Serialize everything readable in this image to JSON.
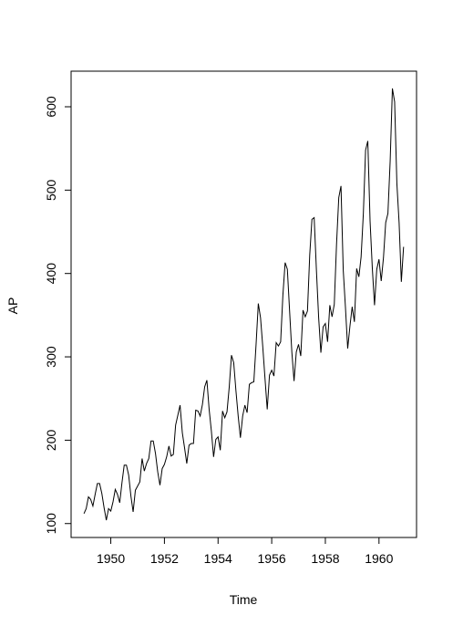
{
  "chart_data": {
    "type": "line",
    "x_label": "Time",
    "y_label": "AP",
    "x": [
      1949,
      1949.083,
      1949.167,
      1949.25,
      1949.333,
      1949.417,
      1949.5,
      1949.583,
      1949.667,
      1949.75,
      1949.833,
      1949.917,
      1950,
      1950.083,
      1950.167,
      1950.25,
      1950.333,
      1950.417,
      1950.5,
      1950.583,
      1950.667,
      1950.75,
      1950.833,
      1950.917,
      1951,
      1951.083,
      1951.167,
      1951.25,
      1951.333,
      1951.417,
      1951.5,
      1951.583,
      1951.667,
      1951.75,
      1951.833,
      1951.917,
      1952,
      1952.083,
      1952.167,
      1952.25,
      1952.333,
      1952.417,
      1952.5,
      1952.583,
      1952.667,
      1952.75,
      1952.833,
      1952.917,
      1953,
      1953.083,
      1953.167,
      1953.25,
      1953.333,
      1953.417,
      1953.5,
      1953.583,
      1953.667,
      1953.75,
      1953.833,
      1953.917,
      1954,
      1954.083,
      1954.167,
      1954.25,
      1954.333,
      1954.417,
      1954.5,
      1954.583,
      1954.667,
      1954.75,
      1954.833,
      1954.917,
      1955,
      1955.083,
      1955.167,
      1955.25,
      1955.333,
      1955.417,
      1955.5,
      1955.583,
      1955.667,
      1955.75,
      1955.833,
      1955.917,
      1956,
      1956.083,
      1956.167,
      1956.25,
      1956.333,
      1956.417,
      1956.5,
      1956.583,
      1956.667,
      1956.75,
      1956.833,
      1956.917,
      1957,
      1957.083,
      1957.167,
      1957.25,
      1957.333,
      1957.417,
      1957.5,
      1957.583,
      1957.667,
      1957.75,
      1957.833,
      1957.917,
      1958,
      1958.083,
      1958.167,
      1958.25,
      1958.333,
      1958.417,
      1958.5,
      1958.583,
      1958.667,
      1958.75,
      1958.833,
      1958.917,
      1959,
      1959.083,
      1959.167,
      1959.25,
      1959.333,
      1959.417,
      1959.5,
      1959.583,
      1959.667,
      1959.75,
      1959.833,
      1959.917,
      1960,
      1960.083,
      1960.167,
      1960.25,
      1960.333,
      1960.417,
      1960.5,
      1960.583,
      1960.667,
      1960.75,
      1960.833,
      1960.917
    ],
    "series": [
      {
        "color": "#000000",
        "values": [
          112,
          118,
          132,
          129,
          121,
          135,
          148,
          148,
          136,
          119,
          104,
          118,
          115,
          126,
          141,
          135,
          125,
          149,
          170,
          170,
          158,
          133,
          114,
          140,
          145,
          150,
          178,
          163,
          172,
          178,
          199,
          199,
          184,
          162,
          146,
          166,
          171,
          180,
          193,
          181,
          183,
          218,
          230,
          242,
          209,
          191,
          172,
          194,
          196,
          196,
          236,
          235,
          229,
          243,
          264,
          272,
          237,
          211,
          180,
          201,
          204,
          188,
          235,
          227,
          234,
          264,
          302,
          293,
          259,
          229,
          203,
          229,
          242,
          233,
          267,
          269,
          270,
          315,
          364,
          347,
          312,
          274,
          237,
          278,
          284,
          277,
          317,
          313,
          318,
          374,
          413,
          405,
          355,
          306,
          271,
          306,
          315,
          301,
          356,
          348,
          355,
          422,
          465,
          467,
          404,
          347,
          305,
          336,
          340,
          318,
          362,
          348,
          363,
          435,
          491,
          505,
          404,
          359,
          310,
          337,
          360,
          342,
          406,
          396,
          420,
          472,
          548,
          559,
          463,
          407,
          362,
          405,
          417,
          391,
          419,
          461,
          472,
          535,
          622,
          606,
          508,
          461,
          390,
          432
        ]
      }
    ],
    "xlim": [
      1948.52,
      1961.4
    ],
    "xticks": [
      1950,
      1952,
      1954,
      1956,
      1958,
      1960
    ],
    "ylim": [
      83.3,
      642.7
    ],
    "yticks": [
      100,
      200,
      300,
      400,
      500,
      600
    ]
  }
}
